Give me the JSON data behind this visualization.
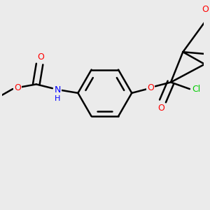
{
  "background_color": "#ebebeb",
  "bond_color": "#000000",
  "atom_colors": {
    "O": "#ff0000",
    "N": "#0000ff",
    "Cl": "#00cc00",
    "H": "#0000ff"
  },
  "figsize": [
    3.0,
    3.0
  ],
  "dpi": 100
}
